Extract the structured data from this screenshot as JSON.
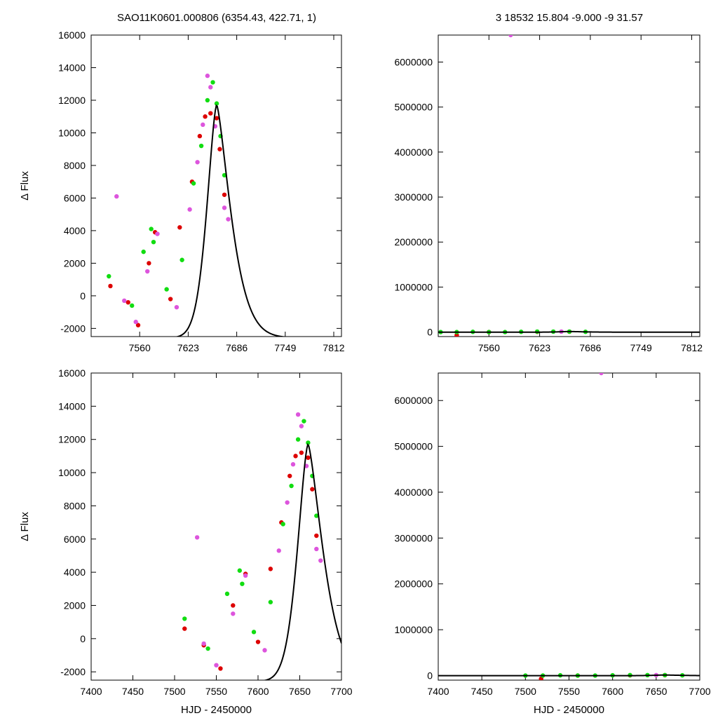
{
  "figure": {
    "title_left": "SAO11K0601.000806 (6354.43, 422.71,    1)",
    "title_right": "3   18532   15.804   -9.000   -9   31.57"
  },
  "colors": {
    "model": "#000000",
    "series_red": "#dd0000",
    "series_green": "#11dd11",
    "series_magenta": "#dd55dd"
  },
  "model_peak": {
    "t0": 7660,
    "amplitude": 14300,
    "baseline": -2580
  },
  "chart_data": [
    {
      "id": "top-left",
      "type": "scatter",
      "title": "",
      "xlabel": "",
      "ylabel": "Δ Flux",
      "xlim": [
        7497,
        7822
      ],
      "ylim": [
        -2500,
        16000
      ],
      "xticks": [
        7560,
        7623,
        7686,
        7749,
        7812
      ],
      "yticks": [
        -2000,
        0,
        2000,
        4000,
        6000,
        8000,
        10000,
        12000,
        14000,
        16000
      ],
      "grid": false,
      "legend": "none",
      "series": [
        {
          "color": "red",
          "x": [
            7522,
            7545,
            7558,
            7572,
            7580,
            7600,
            7612,
            7628,
            7638,
            7645,
            7652,
            7660,
            7664,
            7670
          ],
          "y": [
            600,
            -400,
            -1800,
            2000,
            3900,
            -200,
            4200,
            7000,
            9800,
            11000,
            11200,
            10900,
            9000,
            6200
          ]
        },
        {
          "color": "green",
          "x": [
            7520,
            7550,
            7565,
            7575,
            7578,
            7595,
            7615,
            7630,
            7640,
            7648,
            7655,
            7660,
            7665,
            7670
          ],
          "y": [
            1200,
            -600,
            2700,
            4100,
            3300,
            400,
            2200,
            6900,
            9200,
            12000,
            13100,
            11800,
            9800,
            7400
          ]
        },
        {
          "color": "magenta",
          "x": [
            7530,
            7540,
            7555,
            7570,
            7583,
            7608,
            7625,
            7635,
            7642,
            7648,
            7652,
            7658,
            7670,
            7675
          ],
          "y": [
            6100,
            -300,
            -1600,
            1500,
            3800,
            -700,
            5300,
            8200,
            10500,
            13500,
            12800,
            10400,
            5400,
            4700
          ]
        }
      ],
      "model_line": true
    },
    {
      "id": "top-right",
      "type": "scatter",
      "title": "",
      "xlabel": "",
      "ylabel": "",
      "xlim": [
        7497,
        7822
      ],
      "ylim": [
        -100000,
        6600000
      ],
      "xticks": [
        7560,
        7623,
        7686,
        7749,
        7812
      ],
      "yticks": [
        0,
        1000000,
        2000000,
        3000000,
        4000000,
        5000000,
        6000000
      ],
      "grid": false,
      "legend": "none",
      "series": [
        {
          "color": "red",
          "x": [
            7520,
            7560,
            7620,
            7660
          ],
          "y": [
            -70000,
            0,
            5000,
            8000
          ]
        },
        {
          "color": "green",
          "x": [
            7500,
            7520,
            7540,
            7560,
            7580,
            7600,
            7620,
            7640,
            7660,
            7680
          ],
          "y": [
            0,
            0,
            5000,
            0,
            0,
            5000,
            10000,
            10000,
            10000,
            5000
          ]
        },
        {
          "color": "magenta",
          "x": [
            7587,
            7650
          ],
          "y": [
            6600000,
            10000
          ]
        }
      ],
      "model_line": true
    },
    {
      "id": "bottom-left",
      "type": "scatter",
      "title": "",
      "xlabel": "HJD - 2450000",
      "ylabel": "Δ Flux",
      "xlim": [
        7400,
        7700
      ],
      "ylim": [
        -2500,
        16000
      ],
      "xticks": [
        7400,
        7450,
        7500,
        7550,
        7600,
        7650,
        7700
      ],
      "yticks": [
        -2000,
        0,
        2000,
        4000,
        6000,
        8000,
        10000,
        12000,
        14000,
        16000
      ],
      "grid": false,
      "legend": "none",
      "series": [
        {
          "color": "red",
          "x": [
            7512,
            7535,
            7555,
            7570,
            7585,
            7600,
            7615,
            7628,
            7638,
            7645,
            7652,
            7660,
            7665,
            7670
          ],
          "y": [
            600,
            -400,
            -1800,
            2000,
            3900,
            -200,
            4200,
            7000,
            9800,
            11000,
            11200,
            10900,
            9000,
            6200
          ]
        },
        {
          "color": "green",
          "x": [
            7512,
            7540,
            7563,
            7578,
            7581,
            7595,
            7615,
            7630,
            7640,
            7648,
            7655,
            7660,
            7665,
            7670
          ],
          "y": [
            1200,
            -600,
            2700,
            4100,
            3300,
            400,
            2200,
            6900,
            9200,
            12000,
            13100,
            11800,
            9800,
            7400
          ]
        },
        {
          "color": "magenta",
          "x": [
            7527,
            7535,
            7550,
            7570,
            7585,
            7608,
            7625,
            7635,
            7642,
            7648,
            7652,
            7658,
            7670,
            7675
          ],
          "y": [
            6100,
            -300,
            -1600,
            1500,
            3800,
            -700,
            5300,
            8200,
            10500,
            13500,
            12800,
            10400,
            5400,
            4700
          ]
        }
      ],
      "model_line": true
    },
    {
      "id": "bottom-right",
      "type": "scatter",
      "title": "",
      "xlabel": "HJD - 2450000",
      "ylabel": "",
      "xlim": [
        7400,
        7700
      ],
      "ylim": [
        -100000,
        6600000
      ],
      "xticks": [
        7400,
        7450,
        7500,
        7550,
        7600,
        7650,
        7700
      ],
      "yticks": [
        0,
        1000000,
        2000000,
        3000000,
        4000000,
        5000000,
        6000000
      ],
      "grid": false,
      "legend": "none",
      "series": [
        {
          "color": "red",
          "x": [
            7518,
            7560,
            7620,
            7660
          ],
          "y": [
            -70000,
            0,
            5000,
            8000
          ]
        },
        {
          "color": "green",
          "x": [
            7500,
            7520,
            7540,
            7560,
            7580,
            7600,
            7620,
            7640,
            7660,
            7680
          ],
          "y": [
            0,
            0,
            5000,
            0,
            0,
            5000,
            10000,
            10000,
            10000,
            5000
          ]
        },
        {
          "color": "magenta",
          "x": [
            7587,
            7650
          ],
          "y": [
            6600000,
            10000
          ]
        }
      ],
      "model_line": true
    }
  ]
}
